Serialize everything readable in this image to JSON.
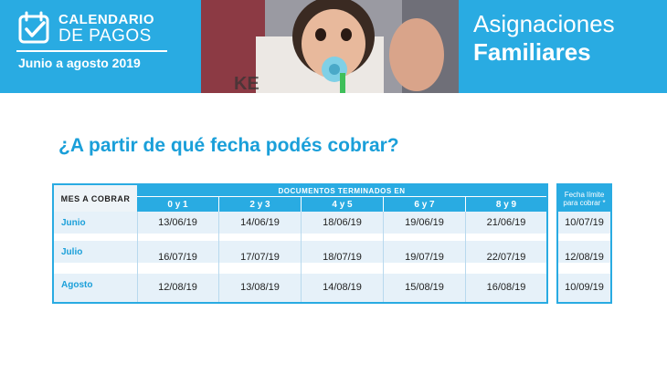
{
  "banner": {
    "logo_line1": "CALENDARIO",
    "logo_line2": "DE PAGOS",
    "logo_period": "Junio a agosto 2019",
    "brand_line1": "Asignaciones",
    "brand_line2": "Familiares",
    "color": "#29abe2"
  },
  "question": "¿A partir de qué fecha podés cobrar?",
  "table": {
    "month_header": "MES A COBRAR",
    "group_header": "DOCUMENTOS TERMINADOS EN",
    "columns": [
      "0 y 1",
      "2 y 3",
      "4 y 5",
      "6 y 7",
      "8 y 9"
    ],
    "rows": [
      {
        "month": "Junio",
        "dates": [
          "13/06/19",
          "14/06/19",
          "18/06/19",
          "19/06/19",
          "21/06/19"
        ]
      },
      {
        "month": "Julio",
        "dates": [
          "16/07/19",
          "17/07/19",
          "18/07/19",
          "19/07/19",
          "22/07/19"
        ]
      },
      {
        "month": "Agosto",
        "dates": [
          "12/08/19",
          "13/08/19",
          "14/08/19",
          "15/08/19",
          "16/08/19"
        ]
      }
    ]
  },
  "deadline": {
    "header_line1": "Fecha límite",
    "header_line2": "para cobrar *",
    "dates": [
      "10/07/19",
      "12/08/19",
      "10/09/19"
    ]
  }
}
